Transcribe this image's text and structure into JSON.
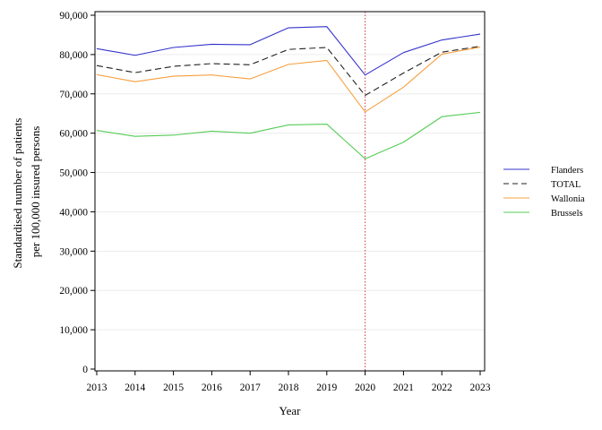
{
  "chart_data": {
    "type": "line",
    "xlabel": "Year",
    "ylabel_lines": [
      "Standardised number of patients",
      "per 100,000 insured persons"
    ],
    "x": [
      2013,
      2014,
      2015,
      2016,
      2017,
      2018,
      2019,
      2020,
      2021,
      2022,
      2023
    ],
    "x_tick_labels": [
      "2013",
      "2014",
      "2015",
      "2016",
      "2017",
      "2018",
      "2019",
      "2020",
      "2021",
      "2022",
      "2023"
    ],
    "xlim": [
      2013,
      2023
    ],
    "y_ticks": [
      0,
      10000,
      20000,
      30000,
      40000,
      50000,
      60000,
      70000,
      80000,
      90000
    ],
    "y_tick_labels": [
      "0",
      "10,000",
      "20,000",
      "30,000",
      "40,000",
      "50,000",
      "60,000",
      "70,000",
      "80,000",
      "90,000"
    ],
    "ylim": [
      0,
      90000
    ],
    "grid": "horizontal",
    "reference_line": {
      "x": 2020,
      "style": "dotted",
      "color": "#cc3344"
    },
    "legend_position": "right",
    "series": [
      {
        "name": "Flanders",
        "color": "#3333cc",
        "dash": "solid",
        "values": [
          81500,
          79800,
          81800,
          82600,
          82500,
          86800,
          87100,
          74800,
          80500,
          83700,
          85200
        ]
      },
      {
        "name": "TOTAL",
        "color": "#222222",
        "dash": "dashed",
        "values": [
          77200,
          75400,
          77000,
          77700,
          77400,
          81300,
          81800,
          69600,
          75300,
          80600,
          82100
        ]
      },
      {
        "name": "Wallonia",
        "color": "#f5a040",
        "dash": "solid",
        "values": [
          74900,
          73100,
          74500,
          74800,
          73800,
          77500,
          78500,
          65400,
          71700,
          80100,
          81900
        ]
      },
      {
        "name": "Brussels",
        "color": "#55cc55",
        "dash": "solid",
        "values": [
          60700,
          59200,
          59500,
          60500,
          60000,
          62100,
          62300,
          53500,
          57700,
          64200,
          65300
        ]
      }
    ]
  }
}
